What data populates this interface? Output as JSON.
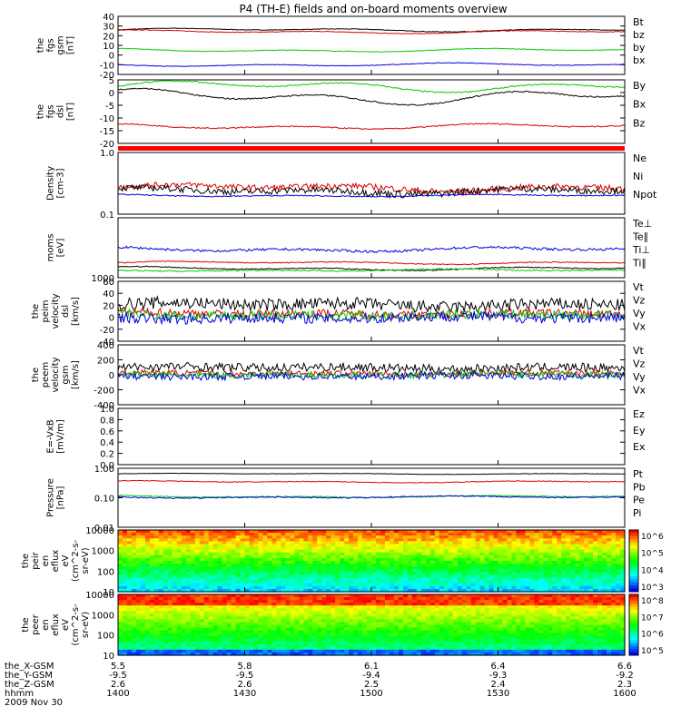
{
  "title": "P4 (TH-E) fields and on-board moments overview",
  "colors": {
    "black": "#000000",
    "red": "#dd0000",
    "green": "#00cc00",
    "blue": "#0000dd"
  },
  "chart_data": {
    "type": "line",
    "x_ticks": [
      "1400",
      "1430",
      "1500",
      "1530",
      "1600"
    ],
    "x_range_minutes": [
      0,
      120
    ],
    "panels": [
      {
        "ylabel": [
          "the",
          "fgs",
          "gsm",
          "[nT]"
        ],
        "ticks": [
          "40",
          "30",
          "20",
          "10",
          "0",
          "-10",
          "-20"
        ],
        "ylim": [
          -20,
          40
        ],
        "series": [
          {
            "name": "Bt",
            "color": "black",
            "base": 26,
            "amp": 2,
            "noise": 0.3
          },
          {
            "name": "bz",
            "color": "red",
            "base": 24,
            "amp": 2,
            "noise": 0.3
          },
          {
            "name": "by",
            "color": "green",
            "base": 5,
            "amp": 2,
            "noise": 0.3
          },
          {
            "name": "bx",
            "color": "blue",
            "base": -10,
            "amp": 2,
            "noise": 0.3
          }
        ]
      },
      {
        "ylabel": [
          "the",
          "fgs",
          "dsl",
          "[nT]"
        ],
        "ticks": [
          "5",
          "0",
          "-5",
          "-10",
          "-15",
          "-20"
        ],
        "ylim": [
          -23,
          7
        ],
        "series": [
          {
            "name": "By",
            "color": "green",
            "base": 4,
            "amp": 3,
            "noise": 0.3
          },
          {
            "name": "Bx",
            "color": "black",
            "base": -1,
            "amp": 4,
            "noise": 0.3
          },
          {
            "name": "Bz",
            "color": "red",
            "base": -15,
            "amp": 1.5,
            "noise": 0.3
          }
        ]
      },
      {
        "ylabel": [
          "Density",
          "[cm-3]"
        ],
        "ticks": [
          "1.0",
          "0.1"
        ],
        "ylim": [
          0.1,
          1.0
        ],
        "log": true,
        "series": [
          {
            "name": "Ne",
            "color": "red",
            "base": 0.27,
            "amp": 0.04,
            "noise": 0.03
          },
          {
            "name": "Ni",
            "color": "black",
            "base": 0.24,
            "amp": 0.03,
            "noise": 0.03
          },
          {
            "name": "Npot",
            "color": "blue",
            "base": 0.2,
            "amp": 0.01,
            "noise": 0.004
          }
        ]
      },
      {
        "ylabel": [
          "moms",
          "[eV]"
        ],
        "ticks": [
          "1000"
        ],
        "ylim": [
          800,
          8000
        ],
        "series": [
          {
            "name": "Te⊥",
            "color": "red",
            "base": 2600,
            "amp": 200,
            "noise": 60
          },
          {
            "name": "Te∥",
            "color": "black",
            "base": 1900,
            "amp": 250,
            "noise": 60
          },
          {
            "name": "Ti⊥",
            "color": "blue",
            "base": 4200,
            "amp": 300,
            "noise": 150
          },
          {
            "name": "Ti∥",
            "color": "green",
            "base": 1700,
            "amp": 150,
            "noise": 80
          }
        ]
      },
      {
        "ylabel": [
          "the",
          "peim",
          "velocity",
          "dsl",
          "[km/s]"
        ],
        "ticks": [
          "60",
          "40",
          "20",
          "0",
          "-20",
          "-40"
        ],
        "ylim": [
          -50,
          65
        ],
        "series": [
          {
            "name": "Vt",
            "color": "black",
            "base": 20,
            "amp": 5,
            "noise": 12
          },
          {
            "name": "Vz",
            "color": "red",
            "base": 3,
            "amp": 3,
            "noise": 8
          },
          {
            "name": "Vy",
            "color": "green",
            "base": 0,
            "amp": 3,
            "noise": 9
          },
          {
            "name": "Vx",
            "color": "blue",
            "base": -5,
            "amp": 3,
            "noise": 10
          }
        ]
      },
      {
        "ylabel": [
          "the",
          "peem",
          "velocity",
          "gsm",
          "[km/s]"
        ],
        "ticks": [
          "400",
          "200",
          "0",
          "-200",
          "-400"
        ],
        "ylim": [
          -420,
          420
        ],
        "series": [
          {
            "name": "Vt",
            "color": "black",
            "base": 100,
            "amp": 20,
            "noise": 60
          },
          {
            "name": "Vz",
            "color": "red",
            "base": 20,
            "amp": 10,
            "noise": 40
          },
          {
            "name": "Vy",
            "color": "green",
            "base": 0,
            "amp": 10,
            "noise": 45
          },
          {
            "name": "Vx",
            "color": "blue",
            "base": -20,
            "amp": 10,
            "noise": 50
          }
        ]
      },
      {
        "ylabel": [
          "E=-VxB",
          "[mV/m]"
        ],
        "ticks": [
          "1.0",
          "0.8",
          "0.6",
          "0.4",
          "0.2",
          "0.0"
        ],
        "ylim": [
          0,
          1
        ],
        "series": [
          {
            "name": "Ez",
            "color": "red"
          },
          {
            "name": "Ey",
            "color": "green"
          },
          {
            "name": "Ex",
            "color": "blue"
          }
        ]
      },
      {
        "ylabel": [
          "Pressure",
          "[nPa]"
        ],
        "ticks": [
          "1.00",
          "0.10",
          "0.01"
        ],
        "ylim": [
          0.01,
          1.0
        ],
        "log": true,
        "series": [
          {
            "name": "Pt",
            "color": "black",
            "base": 0.65,
            "amp": 0.03,
            "noise": 0.01
          },
          {
            "name": "Pb",
            "color": "red",
            "base": 0.35,
            "amp": 0.03,
            "noise": 0.01
          },
          {
            "name": "Pe",
            "color": "green",
            "base": 0.11,
            "amp": 0.01,
            "noise": 0.004
          },
          {
            "name": "Pi",
            "color": "blue",
            "base": 0.105,
            "amp": 0.01,
            "noise": 0.004
          }
        ]
      },
      {
        "ylabel": [
          "the",
          "peir",
          "en",
          "eflux",
          "eV",
          "(cm^2-s-",
          "sr-eV)"
        ],
        "ticks": [
          "10000",
          "1000",
          "100",
          "10"
        ],
        "type": "spectrogram",
        "colorbar_ticks": [
          "10^6",
          "10^5",
          "10^4",
          "10^3"
        ]
      },
      {
        "ylabel": [
          "the",
          "peer",
          "en",
          "eflux",
          "eV",
          "(cm^2-s-",
          "sr-eV)"
        ],
        "ticks": [
          "10000",
          "1000",
          "100",
          "10"
        ],
        "type": "spectrogram",
        "colorbar_ticks": [
          "10^8",
          "10^7",
          "10^6",
          "10^5"
        ]
      }
    ],
    "ephemeris": [
      {
        "label": "the_X-GSM",
        "values": [
          "5.5",
          "5.8",
          "6.1",
          "6.4",
          "6.6"
        ]
      },
      {
        "label": "the_Y-GSM",
        "values": [
          "-9.5",
          "-9.5",
          "-9.4",
          "-9.3",
          "-9.2"
        ]
      },
      {
        "label": "the_Z-GSM",
        "values": [
          "2.6",
          "2.6",
          "2.5",
          "2.4",
          "2.3"
        ]
      },
      {
        "label": "hhmm",
        "values": [
          "1400",
          "1430",
          "1500",
          "1530",
          "1600"
        ]
      }
    ],
    "date": "2009 Nov 30"
  }
}
